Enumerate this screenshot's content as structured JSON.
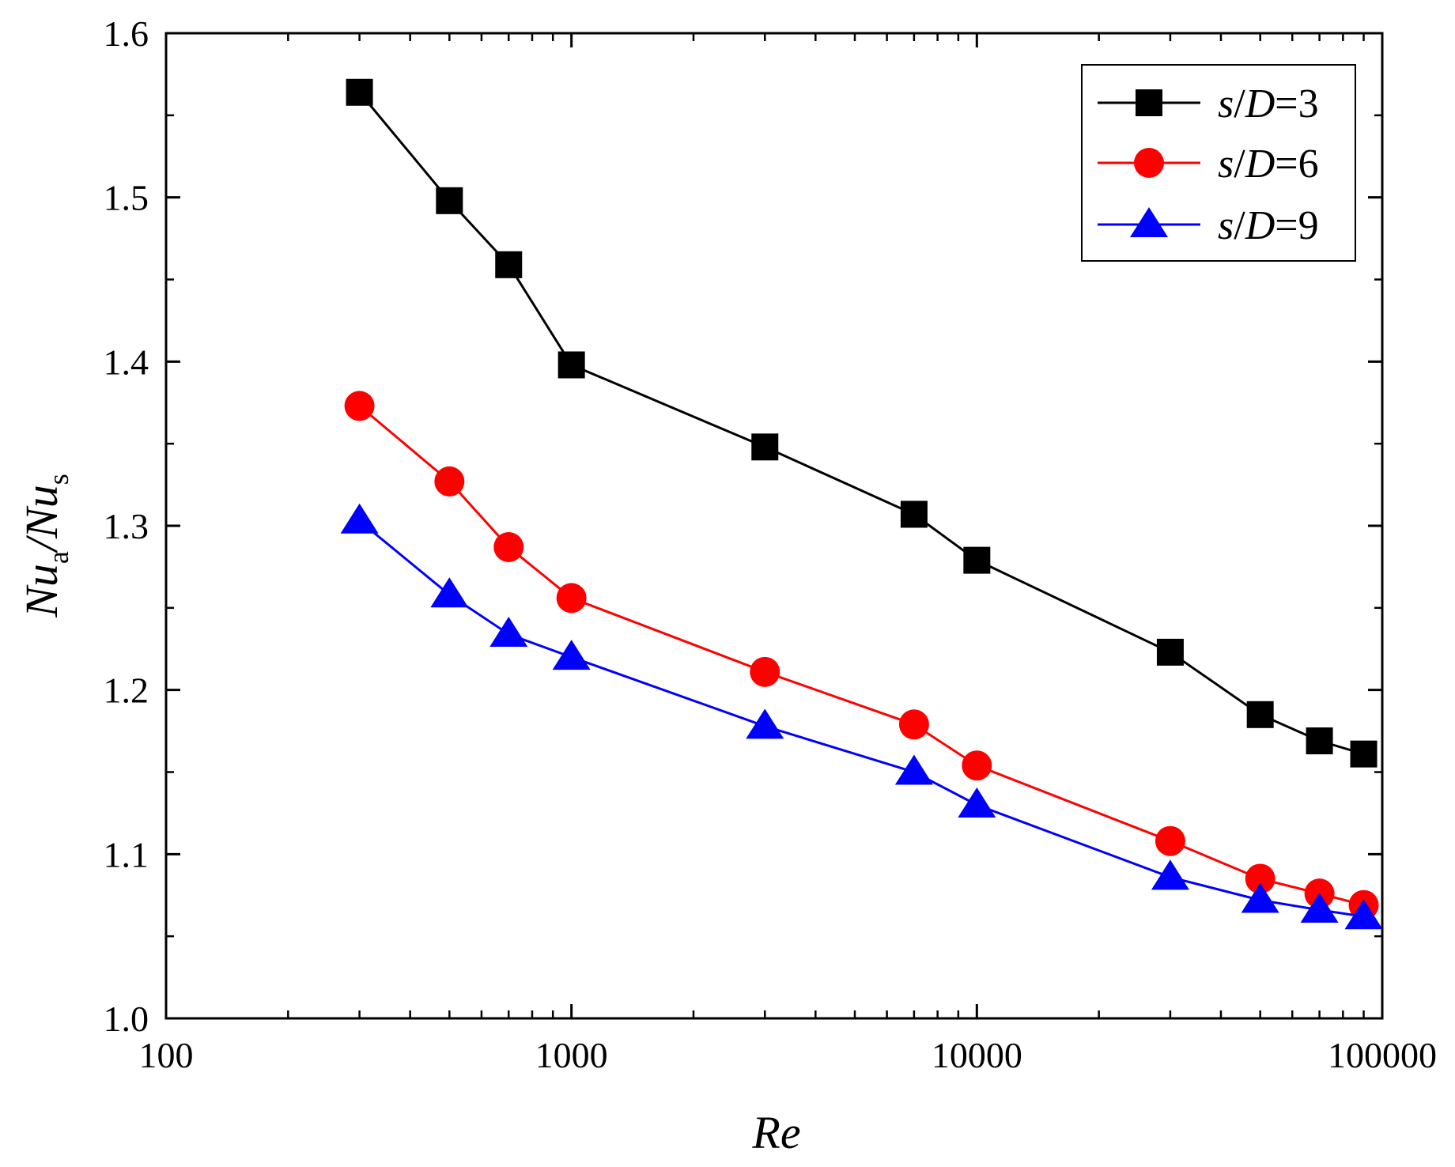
{
  "chart_data": {
    "type": "line",
    "title": "",
    "xlabel": "Re",
    "ylabel": {
      "base1": "Nu",
      "sub1": "a",
      "separator": "/",
      "base2": "Nu",
      "sub2": "s"
    },
    "xscale": "log",
    "xlim": [
      100,
      100000
    ],
    "ylim": [
      1.0,
      1.6
    ],
    "x_ticks": [
      {
        "value": 100,
        "label": "100"
      },
      {
        "value": 1000,
        "label": "1000"
      },
      {
        "value": 10000,
        "label": "10000"
      },
      {
        "value": 100000,
        "label": "100000"
      }
    ],
    "y_ticks": [
      {
        "value": 1.0,
        "label": "1.0"
      },
      {
        "value": 1.1,
        "label": "1.1"
      },
      {
        "value": 1.2,
        "label": "1.2"
      },
      {
        "value": 1.3,
        "label": "1.3"
      },
      {
        "value": 1.4,
        "label": "1.4"
      },
      {
        "value": 1.5,
        "label": "1.5"
      },
      {
        "value": 1.6,
        "label": "1.6"
      }
    ],
    "y_minor_step": 0.05,
    "grid": false,
    "legend_position": "top-right",
    "x": [
      300,
      500,
      700,
      1000,
      3000,
      7000,
      10000,
      30000,
      50000,
      70000,
      90000
    ],
    "series": [
      {
        "legend_var": "s",
        "legend_slash": "/",
        "legend_param": "D",
        "legend_value": "=3",
        "color": "#000000",
        "marker": "square",
        "values": [
          1.564,
          1.498,
          1.459,
          1.398,
          1.348,
          1.307,
          1.279,
          1.223,
          1.185,
          1.169,
          1.161
        ]
      },
      {
        "legend_var": "s",
        "legend_slash": "/",
        "legend_param": "D",
        "legend_value": "=6",
        "color": "#ff0000",
        "marker": "circle",
        "values": [
          1.373,
          1.327,
          1.287,
          1.256,
          1.211,
          1.179,
          1.154,
          1.108,
          1.085,
          1.076,
          1.069
        ]
      },
      {
        "legend_var": "s",
        "legend_slash": "/",
        "legend_param": "D",
        "legend_value": "=9",
        "color": "#0000ff",
        "marker": "triangle",
        "values": [
          1.303,
          1.258,
          1.234,
          1.22,
          1.178,
          1.15,
          1.13,
          1.086,
          1.072,
          1.066,
          1.062
        ]
      }
    ]
  }
}
